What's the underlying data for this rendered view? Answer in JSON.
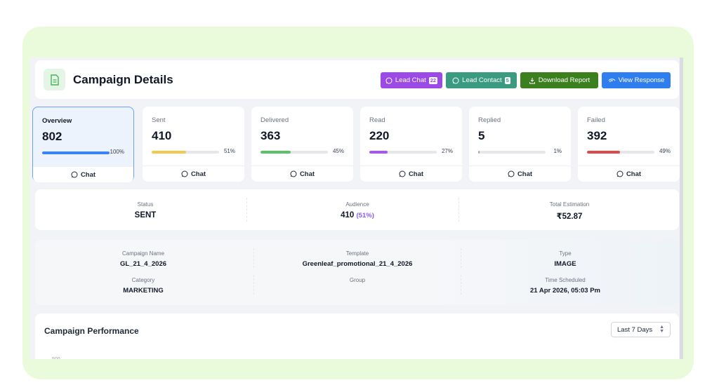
{
  "header": {
    "title": "Campaign Details",
    "buttons": {
      "lead_chat": {
        "label": "Lead Chat",
        "count": "22"
      },
      "lead_contact": {
        "label": "Lead Contact",
        "count": "5"
      },
      "download_report": {
        "label": "Download Report"
      },
      "view_response": {
        "label": "View Response"
      }
    }
  },
  "stats": [
    {
      "label": "Overview",
      "value": "802",
      "percent": "100%",
      "fill": 1.0,
      "color": "#3b82f6",
      "chat": "Chat"
    },
    {
      "label": "Sent",
      "value": "410",
      "percent": "51%",
      "fill": 0.51,
      "color": "#f2c94c",
      "chat": "Chat"
    },
    {
      "label": "Delivered",
      "value": "363",
      "percent": "45%",
      "fill": 0.45,
      "color": "#5cc26a",
      "chat": "Chat"
    },
    {
      "label": "Read",
      "value": "220",
      "percent": "27%",
      "fill": 0.27,
      "color": "#a855f7",
      "chat": "Chat"
    },
    {
      "label": "Replied",
      "value": "5",
      "percent": "1%",
      "fill": 0.01,
      "color": "#9ca3af",
      "chat": "Chat"
    },
    {
      "label": "Failed",
      "value": "392",
      "percent": "49%",
      "fill": 0.49,
      "color": "#e04848",
      "chat": "Chat"
    }
  ],
  "status": {
    "status_label": "Status",
    "status_value": "SENT",
    "audience_label": "Audience",
    "audience_value": "410",
    "audience_pct": "(51%)",
    "estimation_label": "Total Estimation",
    "estimation_value": "₹52.87"
  },
  "details": {
    "campaign_name_label": "Campaign Name",
    "campaign_name": "GL_21_4_2026",
    "template_label": "Template",
    "template": "Greenleaf_promotional_21_4_2026",
    "type_label": "Type",
    "type": "IMAGE",
    "category_label": "Category",
    "category": "MARKETING",
    "group_label": "Group",
    "group": "",
    "time_label": "Time Scheduled",
    "time": "21 Apr 2026, 05:03 Pm"
  },
  "performance": {
    "title": "Campaign Performance",
    "range": "Last 7 Days",
    "first_tick": "500"
  },
  "icons": {
    "whatsapp": "whatsapp-icon",
    "download": "download-icon",
    "view": "view-response-icon",
    "document": "document-icon"
  }
}
